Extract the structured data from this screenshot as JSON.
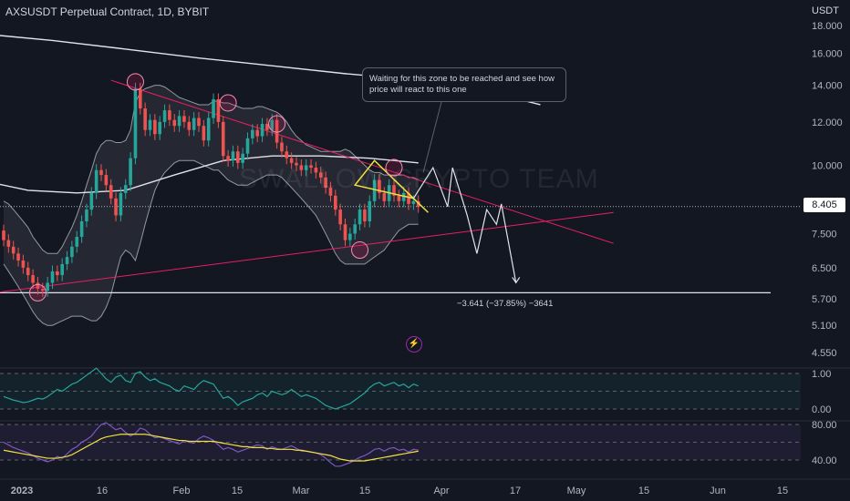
{
  "header": {
    "title": "AXSUSDT Perpetual Contract, 1D, BYBIT",
    "currency": "USDT"
  },
  "watermark": "SWALLOW CRYPTO TEAM",
  "annotation": {
    "text": "Waiting for this zone to be reached and see how price will react to this one"
  },
  "measurement": {
    "text": "−3.641 (−37.85%) −3641"
  },
  "last_price": "8.405",
  "icons": {
    "flash": "lightning-icon"
  },
  "colors": {
    "up": "#26a69a",
    "down": "#ef5350",
    "trendline": "#e91e63",
    "ma": "#e0e3eb",
    "pattern": "#f0e040",
    "osc1": "#26a69a",
    "osc2": "#7e57c2",
    "osc2_signal": "#f0e040"
  },
  "chart_data": [
    {
      "type": "candlestick",
      "title": "AXSUSDT Perpetual Contract, 1D, BYBIT",
      "y_axis_labels": [
        "18.000",
        "16.000",
        "14.000",
        "12.000",
        "10.000",
        "8.405",
        "7.500",
        "6.500",
        "5.700",
        "5.100",
        "4.550"
      ],
      "x_axis_labels": [
        "2023",
        "16",
        "Feb",
        "15",
        "Mar",
        "15",
        "Apr",
        "17",
        "May",
        "15",
        "Jun",
        "15"
      ],
      "y_scale": "log",
      "ylim": [
        4.3,
        18.5
      ],
      "start_date": "2022-12-27",
      "candles": [
        [
          7.6,
          7.3
        ],
        [
          7.3,
          7.1
        ],
        [
          7.1,
          6.9
        ],
        [
          6.9,
          6.7
        ],
        [
          6.7,
          6.5
        ],
        [
          6.5,
          6.3
        ],
        [
          6.3,
          6.1
        ],
        [
          6.1,
          5.95
        ],
        [
          5.95,
          5.9
        ],
        [
          5.9,
          6.1
        ],
        [
          6.1,
          6.4
        ],
        [
          6.4,
          6.3
        ],
        [
          6.3,
          6.6
        ],
        [
          6.6,
          6.8
        ],
        [
          6.8,
          7.1
        ],
        [
          7.1,
          7.4
        ],
        [
          7.4,
          7.9
        ],
        [
          7.9,
          8.3
        ],
        [
          8.3,
          8.9
        ],
        [
          8.9,
          9.8
        ],
        [
          9.8,
          9.6
        ],
        [
          9.6,
          9.2
        ],
        [
          9.2,
          8.7
        ],
        [
          8.7,
          8.1
        ],
        [
          8.1,
          8.9
        ],
        [
          8.9,
          9.2
        ],
        [
          9.2,
          10.3
        ],
        [
          10.3,
          13.8
        ],
        [
          13.8,
          12.7
        ],
        [
          12.7,
          11.6
        ],
        [
          11.6,
          12.1
        ],
        [
          12.1,
          11.4
        ],
        [
          11.4,
          12.0
        ],
        [
          12.0,
          12.6
        ],
        [
          12.6,
          12.1
        ],
        [
          12.1,
          11.8
        ],
        [
          11.8,
          12.3
        ],
        [
          12.3,
          12.0
        ],
        [
          12.0,
          11.6
        ],
        [
          11.6,
          12.2
        ],
        [
          12.2,
          11.8
        ],
        [
          11.8,
          11.1
        ],
        [
          11.1,
          12.2
        ],
        [
          12.2,
          13.2
        ],
        [
          13.2,
          12.0
        ],
        [
          12.0,
          10.4
        ],
        [
          10.4,
          10.2
        ],
        [
          10.2,
          10.6
        ],
        [
          10.6,
          10.1
        ],
        [
          10.1,
          10.5
        ],
        [
          10.5,
          11.2
        ],
        [
          11.2,
          11.6
        ],
        [
          11.6,
          11.3
        ],
        [
          11.3,
          11.9
        ],
        [
          11.9,
          11.6
        ],
        [
          11.6,
          12.1
        ],
        [
          12.1,
          11.0
        ],
        [
          11.0,
          10.6
        ],
        [
          10.6,
          10.3
        ],
        [
          10.3,
          10.1
        ],
        [
          10.1,
          10.0
        ],
        [
          10.0,
          9.8
        ],
        [
          9.8,
          10.0
        ],
        [
          10.0,
          9.9
        ],
        [
          9.9,
          9.7
        ],
        [
          9.7,
          9.5
        ],
        [
          9.5,
          9.1
        ],
        [
          9.1,
          8.8
        ],
        [
          8.8,
          8.3
        ],
        [
          8.3,
          7.8
        ],
        [
          7.8,
          7.3
        ],
        [
          7.3,
          7.5
        ],
        [
          7.5,
          7.8
        ],
        [
          7.8,
          8.3
        ],
        [
          8.3,
          7.9
        ],
        [
          7.9,
          8.6
        ],
        [
          8.6,
          9.4
        ],
        [
          9.4,
          8.9
        ],
        [
          8.9,
          8.6
        ],
        [
          8.6,
          9.2
        ],
        [
          9.2,
          8.8
        ],
        [
          8.8,
          8.6
        ],
        [
          8.6,
          8.9
        ],
        [
          8.9,
          8.5
        ],
        [
          8.5,
          8.6
        ],
        [
          8.6,
          8.4
        ]
      ],
      "bollinger": {
        "upper": [
          8.6,
          8.5,
          8.3,
          8.1,
          7.9,
          7.7,
          7.4,
          7.2,
          7.0,
          6.9,
          6.9,
          6.9,
          7.1,
          7.4,
          7.7,
          8.1,
          8.6,
          9.2,
          9.8,
          10.5,
          10.9,
          11.1,
          11.1,
          11.0,
          11.0,
          11.1,
          11.6,
          13.0,
          13.6,
          13.8,
          13.9,
          14.0,
          14.0,
          13.9,
          13.7,
          13.5,
          13.3,
          13.2,
          13.1,
          13.0,
          12.9,
          12.9,
          12.9,
          13.1,
          13.1,
          13.0,
          13.0,
          12.9,
          12.8,
          12.7,
          12.7,
          12.7,
          12.8,
          12.8,
          12.7,
          12.6,
          12.5,
          12.3,
          12.0,
          11.6,
          11.3,
          11.1,
          10.9,
          10.8,
          10.7,
          10.6,
          10.6,
          10.6,
          10.6,
          10.6,
          10.7,
          10.6,
          10.4,
          10.2,
          10.0,
          9.8,
          9.7,
          9.7,
          9.6,
          9.6,
          9.6,
          9.6,
          9.6,
          9.5,
          9.5,
          9.4
        ],
        "lower": [
          6.6,
          6.4,
          6.2,
          6.0,
          5.8,
          5.6,
          5.4,
          5.25,
          5.15,
          5.1,
          5.1,
          5.15,
          5.2,
          5.25,
          5.3,
          5.3,
          5.3,
          5.25,
          5.2,
          5.2,
          5.3,
          5.5,
          5.8,
          6.3,
          6.8,
          7.0,
          6.9,
          6.7,
          7.2,
          7.8,
          8.4,
          9.0,
          9.4,
          9.7,
          9.9,
          10.1,
          10.2,
          10.2,
          10.2,
          10.2,
          10.1,
          10.0,
          9.9,
          9.8,
          9.8,
          9.6,
          9.4,
          9.3,
          9.2,
          9.2,
          9.2,
          9.3,
          9.4,
          9.5,
          9.6,
          9.6,
          9.6,
          9.5,
          9.3,
          9.1,
          8.9,
          8.7,
          8.5,
          8.3,
          8.1,
          7.8,
          7.5,
          7.2,
          6.9,
          6.7,
          6.6,
          6.6,
          6.6,
          6.6,
          6.6,
          6.7,
          6.8,
          6.9,
          7.0,
          7.2,
          7.4,
          7.6,
          7.7,
          7.8,
          7.8,
          7.8
        ]
      },
      "moving_averages": [
        {
          "points": [
            [
              -5,
              17.4
            ],
            [
              10,
              16.9
            ],
            [
              25,
              16.3
            ],
            [
              40,
              15.7
            ],
            [
              55,
              15.2
            ],
            [
              70,
              14.7
            ],
            [
              85,
              14.3
            ],
            [
              95,
              13.8
            ],
            [
              104,
              13.3
            ],
            [
              110,
              12.9
            ]
          ]
        },
        {
          "points": [
            [
              -5,
              9.4
            ],
            [
              5,
              9.0
            ],
            [
              15,
              8.9
            ],
            [
              25,
              9.0
            ],
            [
              35,
              9.6
            ],
            [
              45,
              10.2
            ],
            [
              55,
              10.4
            ],
            [
              65,
              10.4
            ],
            [
              75,
              10.3
            ],
            [
              85,
              10.1
            ]
          ]
        }
      ],
      "trendlines": [
        {
          "from": [
            -5,
            5.8
          ],
          "to": [
            125,
            8.2
          ]
        },
        {
          "from": [
            22,
            14.3
          ],
          "to": [
            125,
            7.2
          ]
        }
      ],
      "pattern": [
        [
          72,
          9.2
        ],
        [
          76,
          10.2
        ],
        [
          84,
          8.7
        ],
        [
          87,
          8.2
        ],
        [
          76,
          10.2
        ],
        [
          72,
          9.2
        ],
        [
          84,
          8.7
        ]
      ],
      "projection": [
        [
          84,
          8.7
        ],
        [
          88,
          9.9
        ],
        [
          91,
          8.4
        ],
        [
          92,
          9.9
        ],
        [
          95,
          8.1
        ],
        [
          97,
          6.9
        ],
        [
          99,
          8.3
        ],
        [
          101,
          7.8
        ],
        [
          102,
          8.5
        ],
        [
          105,
          6.1
        ]
      ],
      "highlight_circles": [
        [
          27,
          14.2
        ],
        [
          46,
          13.0
        ],
        [
          56,
          11.9
        ],
        [
          80,
          9.9
        ],
        [
          7,
          5.85
        ],
        [
          73,
          7.0
        ]
      ],
      "horizontal_line": 5.85,
      "last_price_line": 8.405
    },
    {
      "type": "line",
      "name": "",
      "y_axis_labels": [
        "1.00",
        "0.00"
      ],
      "ylim": [
        -0.1,
        1.2
      ],
      "guides": [
        1.0,
        0.5,
        0.0
      ],
      "values": [
        0.35,
        0.3,
        0.25,
        0.22,
        0.18,
        0.2,
        0.25,
        0.3,
        0.28,
        0.35,
        0.45,
        0.55,
        0.5,
        0.6,
        0.7,
        0.75,
        0.85,
        0.95,
        1.05,
        1.15,
        1.0,
        0.85,
        0.75,
        0.9,
        0.95,
        0.8,
        0.75,
        1.0,
        1.05,
        0.9,
        0.8,
        0.85,
        0.75,
        0.7,
        0.65,
        0.55,
        0.5,
        0.65,
        0.6,
        0.55,
        0.7,
        0.8,
        0.75,
        0.7,
        0.5,
        0.3,
        0.35,
        0.25,
        0.1,
        0.2,
        0.25,
        0.3,
        0.4,
        0.45,
        0.35,
        0.5,
        0.45,
        0.4,
        0.45,
        0.55,
        0.45,
        0.35,
        0.4,
        0.35,
        0.3,
        0.2,
        0.1,
        0.05,
        0.0,
        0.05,
        0.1,
        0.15,
        0.25,
        0.35,
        0.45,
        0.6,
        0.7,
        0.75,
        0.65,
        0.7,
        0.75,
        0.65,
        0.7,
        0.6,
        0.7,
        0.65
      ]
    },
    {
      "type": "line",
      "y_axis_labels": [
        "80.00",
        "40.00"
      ],
      "ylim": [
        28,
        92
      ],
      "guides": [
        80,
        60,
        40
      ],
      "series": [
        {
          "values": [
            60,
            57,
            54,
            52,
            50,
            48,
            45,
            42,
            40,
            38,
            40,
            44,
            42,
            47,
            52,
            55,
            60,
            63,
            67,
            74,
            80,
            82,
            78,
            74,
            76,
            71,
            67,
            70,
            76,
            74,
            69,
            65,
            66,
            64,
            62,
            60,
            58,
            62,
            60,
            59,
            64,
            67,
            65,
            62,
            57,
            52,
            54,
            52,
            49,
            51,
            53,
            55,
            57,
            56,
            52,
            55,
            53,
            52,
            54,
            56,
            53,
            50,
            50,
            49,
            48,
            46,
            42,
            37,
            33,
            33,
            35,
            37,
            40,
            43,
            45,
            48,
            52,
            53,
            50,
            53,
            54,
            51,
            52,
            49,
            52,
            51
          ]
        },
        {
          "values": [
            51,
            50,
            49,
            48,
            47,
            46,
            45,
            44,
            43,
            42,
            42,
            42,
            43,
            44,
            46,
            49,
            52,
            55,
            58,
            61,
            64,
            66,
            67,
            68,
            69,
            69,
            69,
            69,
            69,
            69,
            68,
            67,
            66,
            65,
            64,
            63,
            62,
            62,
            61,
            61,
            61,
            61,
            61,
            61,
            60,
            59,
            58,
            57,
            56,
            55,
            55,
            54,
            54,
            54,
            53,
            53,
            52,
            52,
            52,
            52,
            51,
            51,
            50,
            49,
            48,
            47,
            46,
            45,
            43,
            41,
            40,
            39,
            39,
            39,
            39,
            40,
            41,
            42,
            43,
            44,
            45,
            46,
            47,
            48,
            49,
            50
          ]
        }
      ]
    }
  ]
}
